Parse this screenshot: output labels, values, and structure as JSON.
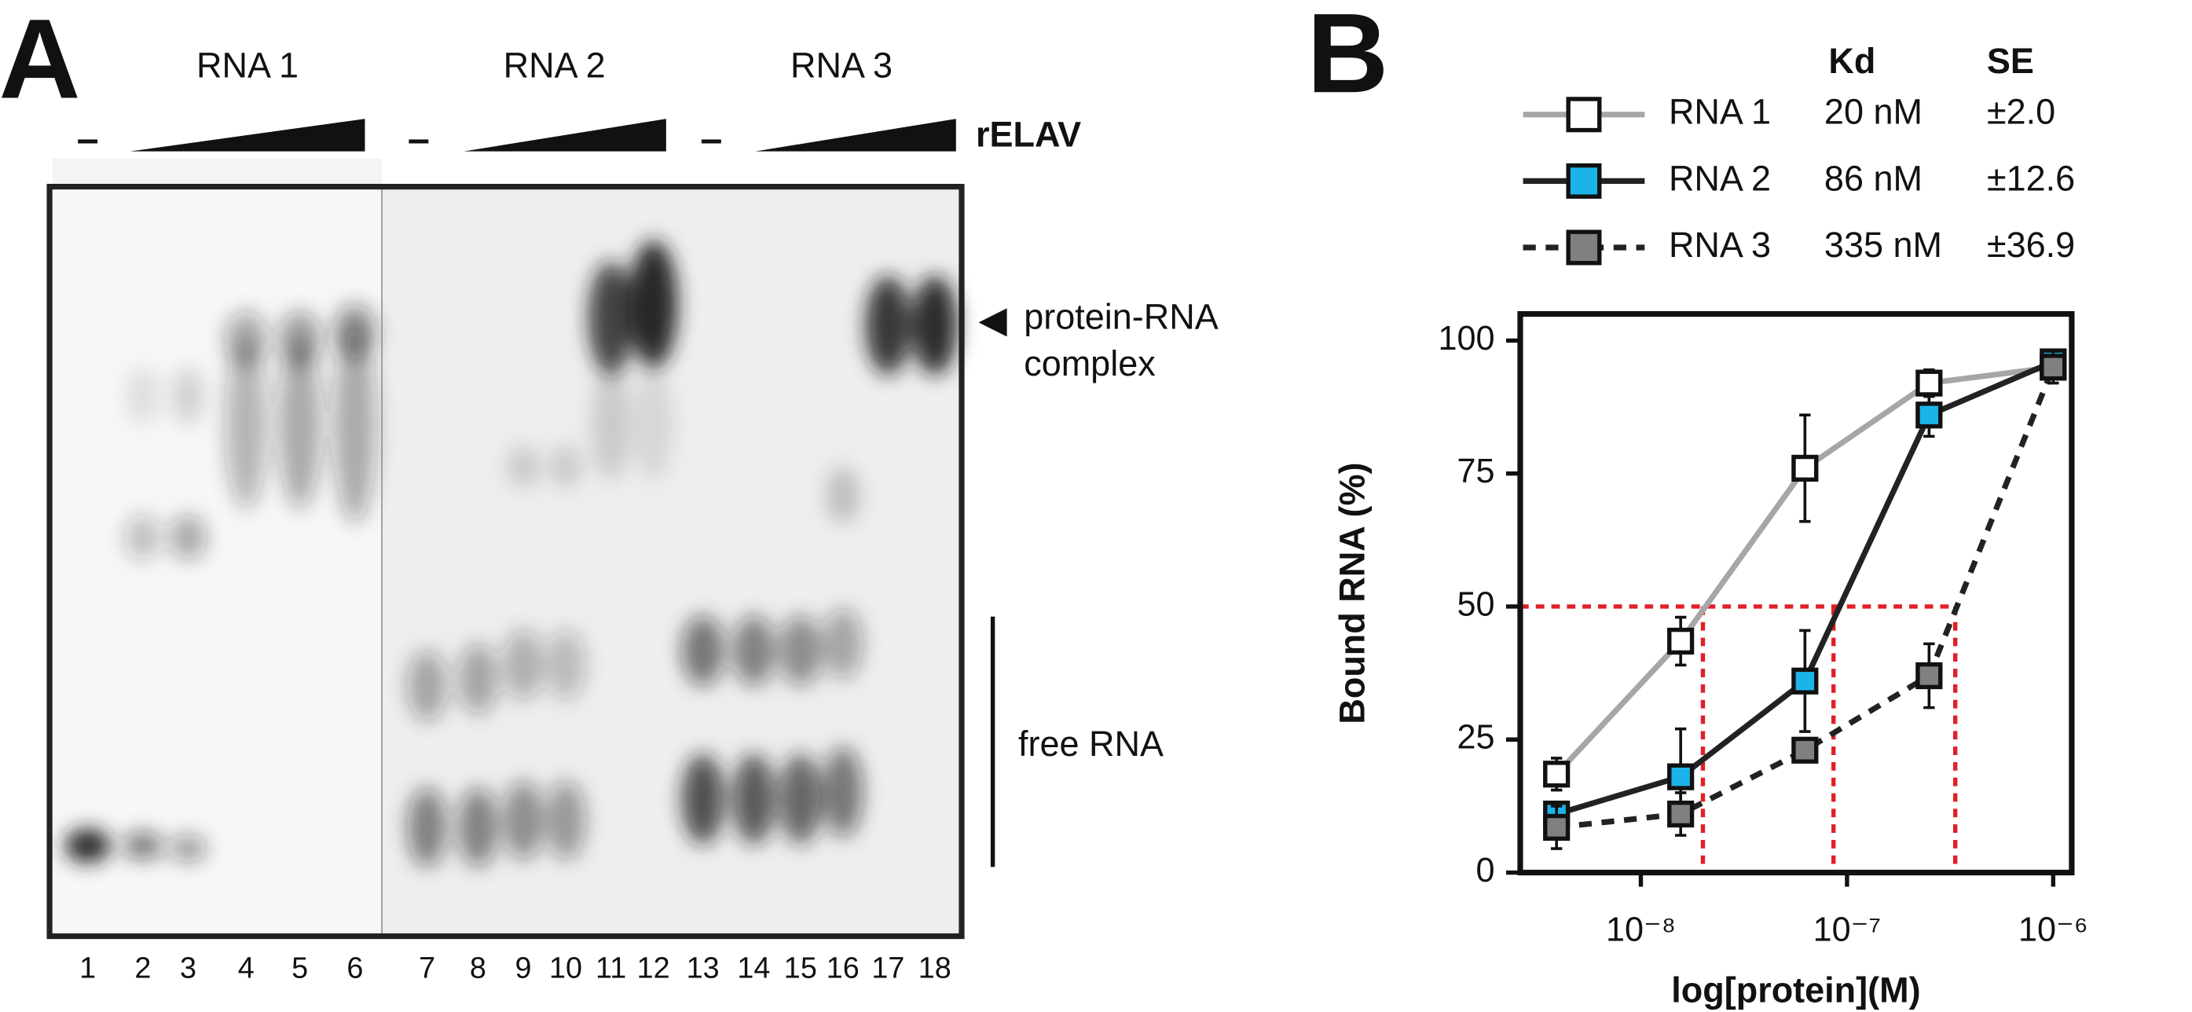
{
  "panel_a": {
    "label": "A",
    "groups": [
      "RNA 1",
      "RNA 2",
      "RNA 3"
    ],
    "controls": [
      "–",
      "–",
      "–"
    ],
    "protein": "rELAV",
    "complex_label": [
      "protein-RNA",
      "complex"
    ],
    "free_label": "free RNA",
    "lanes": [
      1,
      2,
      3,
      4,
      5,
      6,
      7,
      8,
      9,
      10,
      11,
      12,
      13,
      14,
      15,
      16,
      17,
      18
    ]
  },
  "panel_b_label": "B",
  "chart_data": {
    "type": "line",
    "x_label": "log[protein](M)",
    "y_label": "Bound RNA (%)",
    "legend_headers": [
      "Kd",
      "SE"
    ],
    "x": [
      3.9e-09,
      1.56e-08,
      6.25e-08,
      2.5e-07,
      1e-06
    ],
    "log_x": true,
    "xlim": [
      2.6e-09,
      1.23e-06
    ],
    "xticks": [
      {
        "value": 1e-08,
        "label": "10⁻⁸"
      },
      {
        "value": 1e-07,
        "label": "10⁻⁷"
      },
      {
        "value": 1e-06,
        "label": "10⁻⁶"
      }
    ],
    "ylim": [
      0,
      105
    ],
    "yticks": [
      0,
      25,
      50,
      75,
      100
    ],
    "series": [
      {
        "name": "RNA 1",
        "kd": "20 nM",
        "se": "±2.0",
        "color": "#a6a6a6",
        "marker_color": "#ffffff",
        "dashed": false,
        "values": [
          18.5,
          43.5,
          76,
          92,
          95
        ],
        "errors": [
          3,
          4.5,
          10,
          2.5,
          2
        ]
      },
      {
        "name": "RNA 2",
        "kd": "86 nM",
        "se": "±12.6",
        "color": "#222222",
        "marker_color": "#1cb4e8",
        "dashed": false,
        "values": [
          11,
          18,
          36,
          86,
          96
        ],
        "errors": [
          2,
          9,
          9.5,
          4,
          2
        ]
      },
      {
        "name": "RNA 3",
        "kd": "335 nM",
        "se": "±36.9",
        "color": "#222222",
        "marker_color": "#808080",
        "dashed": true,
        "values": [
          8.5,
          11,
          23,
          37,
          95
        ],
        "errors": [
          4,
          4,
          2,
          6,
          3
        ]
      }
    ],
    "kd_guides": {
      "y": 50,
      "x": [
        2e-08,
        8.6e-08,
        3.35e-07
      ],
      "color": "#e02028"
    }
  }
}
